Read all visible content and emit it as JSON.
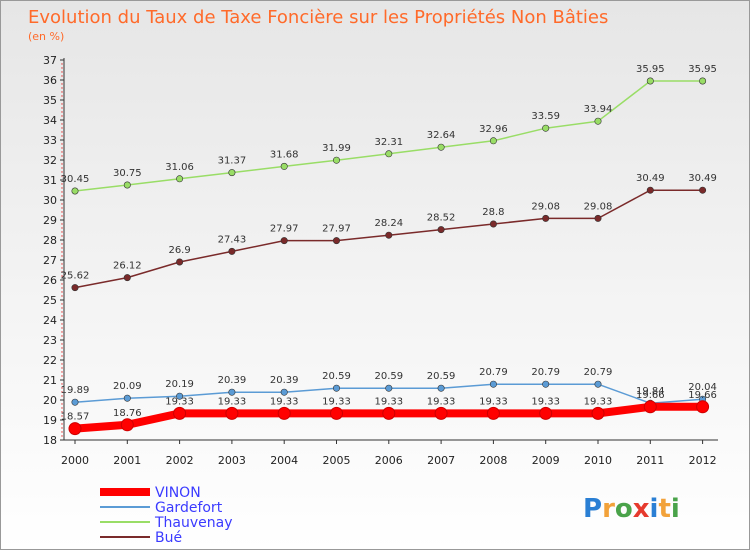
{
  "chart_data": {
    "type": "line",
    "title": "Evolution du Taux de Taxe Foncière sur les Propriétés Non Bâties",
    "subtitle": "(en %)",
    "xlabel": "",
    "ylabel": "",
    "ylim": [
      18,
      37
    ],
    "yticks": [
      18,
      19,
      20,
      21,
      22,
      23,
      24,
      25,
      26,
      27,
      28,
      29,
      30,
      31,
      32,
      33,
      34,
      35,
      36,
      37
    ],
    "categories": [
      "2000",
      "2001",
      "2002",
      "2003",
      "2004",
      "2005",
      "2006",
      "2007",
      "2008",
      "2009",
      "2010",
      "2011",
      "2012"
    ],
    "series": [
      {
        "name": "VINON",
        "color": "#ff0000",
        "values": [
          18.57,
          18.76,
          19.33,
          19.33,
          19.33,
          19.33,
          19.33,
          19.33,
          19.33,
          19.33,
          19.33,
          19.66,
          19.66
        ],
        "labels": [
          "18.57",
          "18.76",
          "19.33",
          "19.33",
          "19.33",
          "19.33",
          "19.33",
          "19.33",
          "19.33",
          "19.33",
          "19.33",
          "19.66",
          "19.66"
        ]
      },
      {
        "name": "Gardefort",
        "color": "#5b9bd5",
        "values": [
          19.89,
          20.09,
          20.19,
          20.39,
          20.39,
          20.59,
          20.59,
          20.59,
          20.79,
          20.79,
          20.79,
          19.84,
          20.04
        ],
        "labels": [
          "19.89",
          "20.09",
          "20.19",
          "20.39",
          "20.39",
          "20.59",
          "20.59",
          "20.59",
          "20.79",
          "20.79",
          "20.79",
          "19.84",
          "20.04"
        ]
      },
      {
        "name": "Thauvenay",
        "color": "#99dd66",
        "values": [
          30.45,
          30.75,
          31.06,
          31.37,
          31.68,
          31.99,
          32.31,
          32.64,
          32.96,
          33.59,
          33.94,
          35.95,
          35.95
        ],
        "labels": [
          "30.45",
          "30.75",
          "31.06",
          "31.37",
          "31.68",
          "31.99",
          "32.31",
          "32.64",
          "32.96",
          "33.59",
          "33.94",
          "35.95",
          "35.95"
        ]
      },
      {
        "name": "Bué",
        "color": "#7a2a2a",
        "values": [
          25.62,
          26.12,
          26.9,
          27.43,
          27.97,
          27.97,
          28.24,
          28.52,
          28.8,
          29.08,
          29.08,
          30.49,
          30.49
        ],
        "labels": [
          "25.62",
          "26.12",
          "26.9",
          "27.43",
          "27.97",
          "27.97",
          "28.24",
          "28.52",
          "28.8",
          "29.08",
          "29.08",
          "30.49",
          "30.49"
        ]
      }
    ],
    "legend": {
      "placement": "bottom-left",
      "items": [
        "VINON",
        "Gardefort",
        "Thauvenay",
        "Bué"
      ]
    },
    "grid": false
  },
  "logo": {
    "text": "Proxiti"
  }
}
